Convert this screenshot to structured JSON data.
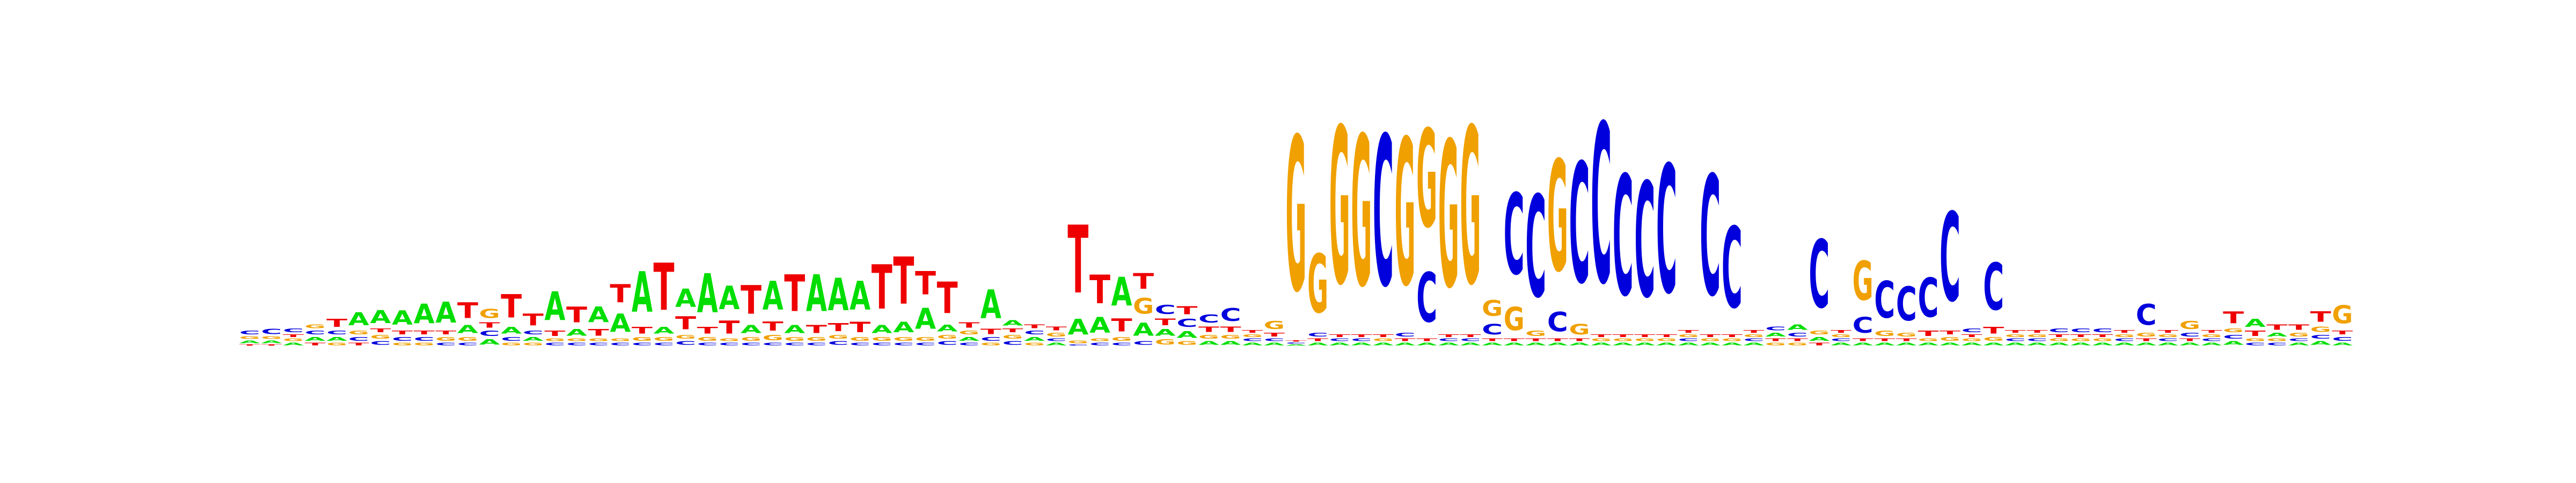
{
  "figure": {
    "kind": "sequence-logo",
    "alphabet": [
      "A",
      "C",
      "G",
      "T"
    ],
    "colors": {
      "A": "#00dd00",
      "C": "#0000dd",
      "G": "#f0a000",
      "T": "#ee0000"
    },
    "background": "#ffffff",
    "axes_visible": false
  },
  "chart_data": {
    "type": "sequence-logo",
    "units": "bits",
    "ylim": [
      0,
      2
    ],
    "positions": [
      {
        "A": 0.02,
        "C": 0.03,
        "G": 0.02,
        "T": 0.01
      },
      {
        "A": 0.02,
        "C": 0.04,
        "G": 0.02,
        "T": 0.01
      },
      {
        "A": 0.02,
        "C": 0.03,
        "G": 0.02,
        "T": 0.02
      },
      {
        "A": 0.03,
        "C": 0.03,
        "G": 0.03,
        "T": 0.02
      },
      {
        "A": 0.03,
        "C": 0.03,
        "G": 0.02,
        "T": 0.06
      },
      {
        "A": 0.1,
        "C": 0.03,
        "G": 0.03,
        "T": 0.02
      },
      {
        "A": 0.1,
        "C": 0.03,
        "G": 0.03,
        "T": 0.03
      },
      {
        "A": 0.11,
        "C": 0.03,
        "G": 0.02,
        "T": 0.03
      },
      {
        "A": 0.15,
        "C": 0.03,
        "G": 0.02,
        "T": 0.03
      },
      {
        "A": 0.16,
        "C": 0.02,
        "G": 0.03,
        "T": 0.03
      },
      {
        "A": 0.06,
        "C": 0.02,
        "G": 0.03,
        "T": 0.12
      },
      {
        "A": 0.04,
        "C": 0.04,
        "G": 0.07,
        "T": 0.04
      },
      {
        "A": 0.05,
        "C": 0.03,
        "G": 0.02,
        "T": 0.18
      },
      {
        "A": 0.03,
        "C": 0.03,
        "G": 0.02,
        "T": 0.09
      },
      {
        "A": 0.22,
        "C": 0.02,
        "G": 0.02,
        "T": 0.04
      },
      {
        "A": 0.05,
        "C": 0.02,
        "G": 0.02,
        "T": 0.12
      },
      {
        "A": 0.12,
        "C": 0.02,
        "G": 0.02,
        "T": 0.05
      },
      {
        "A": 0.14,
        "C": 0.02,
        "G": 0.02,
        "T": 0.14
      },
      {
        "A": 0.31,
        "C": 0.02,
        "G": 0.03,
        "T": 0.05
      },
      {
        "A": 0.05,
        "C": 0.02,
        "G": 0.03,
        "T": 0.36
      },
      {
        "A": 0.14,
        "C": 0.03,
        "G": 0.03,
        "T": 0.1
      },
      {
        "A": 0.3,
        "C": 0.02,
        "G": 0.03,
        "T": 0.05
      },
      {
        "A": 0.18,
        "C": 0.02,
        "G": 0.02,
        "T": 0.1
      },
      {
        "A": 0.06,
        "C": 0.02,
        "G": 0.03,
        "T": 0.22
      },
      {
        "A": 0.22,
        "C": 0.02,
        "G": 0.04,
        "T": 0.07
      },
      {
        "A": 0.06,
        "C": 0.02,
        "G": 0.03,
        "T": 0.28
      },
      {
        "A": 0.28,
        "C": 0.02,
        "G": 0.03,
        "T": 0.06
      },
      {
        "A": 0.25,
        "C": 0.03,
        "G": 0.03,
        "T": 0.06
      },
      {
        "A": 0.22,
        "C": 0.02,
        "G": 0.03,
        "T": 0.08
      },
      {
        "A": 0.06,
        "C": 0.02,
        "G": 0.03,
        "T": 0.34
      },
      {
        "A": 0.08,
        "C": 0.02,
        "G": 0.03,
        "T": 0.36
      },
      {
        "A": 0.16,
        "C": 0.02,
        "G": 0.03,
        "T": 0.18
      },
      {
        "A": 0.05,
        "C": 0.03,
        "G": 0.03,
        "T": 0.24
      },
      {
        "A": 0.03,
        "C": 0.02,
        "G": 0.03,
        "T": 0.04
      },
      {
        "A": 0.22,
        "C": 0.03,
        "G": 0.02,
        "T": 0.04
      },
      {
        "A": 0.04,
        "C": 0.03,
        "G": 0.03,
        "T": 0.03
      },
      {
        "A": 0.03,
        "C": 0.03,
        "G": 0.02,
        "T": 0.03
      },
      {
        "A": 0.02,
        "C": 0.02,
        "G": 0.03,
        "T": 0.03
      },
      {
        "A": 0.12,
        "C": 0.01,
        "G": 0.02,
        "T": 0.52
      },
      {
        "A": 0.12,
        "C": 0.02,
        "G": 0.02,
        "T": 0.22
      },
      {
        "A": 0.22,
        "C": 0.02,
        "G": 0.03,
        "T": 0.1
      },
      {
        "A": 0.1,
        "C": 0.03,
        "G": 0.12,
        "T": 0.12
      },
      {
        "A": 0.05,
        "C": 0.07,
        "G": 0.04,
        "T": 0.05
      },
      {
        "A": 0.05,
        "C": 0.06,
        "G": 0.03,
        "T": 0.06
      },
      {
        "A": 0.03,
        "C": 0.06,
        "G": 0.03,
        "T": 0.04
      },
      {
        "A": 0.03,
        "C": 0.1,
        "G": 0.03,
        "T": 0.04
      },
      {
        "A": 0.02,
        "C": 0.02,
        "G": 0.02,
        "T": 0.02
      },
      {
        "A": 0.02,
        "C": 0.02,
        "G": 0.06,
        "T": 0.03
      },
      {
        "A": 0.01,
        "C": 0.01,
        "G": 1.18,
        "T": 0.01
      },
      {
        "A": 0.02,
        "C": 0.03,
        "G": 0.45,
        "T": 0.02
      },
      {
        "A": 0.02,
        "C": 0.02,
        "G": 1.2,
        "T": 0.02
      },
      {
        "A": 0.02,
        "C": 0.02,
        "G": 1.15,
        "T": 0.02
      },
      {
        "A": 0.02,
        "C": 1.15,
        "G": 0.02,
        "T": 0.02
      },
      {
        "A": 0.02,
        "C": 0.03,
        "G": 1.12,
        "T": 0.02
      },
      {
        "A": 0.02,
        "C": 0.38,
        "G": 0.75,
        "T": 0.02
      },
      {
        "A": 0.02,
        "C": 0.02,
        "G": 1.12,
        "T": 0.02
      },
      {
        "A": 0.02,
        "C": 0.02,
        "G": 1.2,
        "T": 0.02
      },
      {
        "A": 0.02,
        "C": 0.08,
        "G": 0.12,
        "T": 0.02
      },
      {
        "A": 0.02,
        "C": 0.62,
        "G": 0.18,
        "T": 0.02
      },
      {
        "A": 0.02,
        "C": 0.78,
        "G": 0.04,
        "T": 0.02
      },
      {
        "A": 0.02,
        "C": 0.15,
        "G": 0.85,
        "T": 0.02
      },
      {
        "A": 0.02,
        "C": 0.92,
        "G": 0.08,
        "T": 0.02
      },
      {
        "A": 0.02,
        "C": 1.22,
        "G": 0.02,
        "T": 0.02
      },
      {
        "A": 0.02,
        "C": 0.92,
        "G": 0.02,
        "T": 0.02
      },
      {
        "A": 0.02,
        "C": 0.88,
        "G": 0.02,
        "T": 0.02
      },
      {
        "A": 0.02,
        "C": 0.98,
        "G": 0.02,
        "T": 0.02
      },
      {
        "A": 0.02,
        "C": 0.02,
        "G": 0.02,
        "T": 0.02
      },
      {
        "A": 0.02,
        "C": 0.92,
        "G": 0.02,
        "T": 0.02
      },
      {
        "A": 0.02,
        "C": 0.62,
        "G": 0.02,
        "T": 0.02
      },
      {
        "A": 0.02,
        "C": 0.02,
        "G": 0.02,
        "T": 0.02
      },
      {
        "A": 0.03,
        "C": 0.03,
        "G": 0.02,
        "T": 0.02
      },
      {
        "A": 0.04,
        "C": 0.03,
        "G": 0.02,
        "T": 0.02
      },
      {
        "A": 0.03,
        "C": 0.52,
        "G": 0.03,
        "T": 0.02
      },
      {
        "A": 0.02,
        "C": 0.02,
        "G": 0.02,
        "T": 0.02
      },
      {
        "A": 0.02,
        "C": 0.12,
        "G": 0.3,
        "T": 0.02
      },
      {
        "A": 0.02,
        "C": 0.28,
        "G": 0.04,
        "T": 0.02
      },
      {
        "A": 0.02,
        "C": 0.26,
        "G": 0.03,
        "T": 0.02
      },
      {
        "A": 0.02,
        "C": 0.3,
        "G": 0.02,
        "T": 0.04
      },
      {
        "A": 0.02,
        "C": 0.68,
        "G": 0.03,
        "T": 0.03
      },
      {
        "A": 0.02,
        "C": 0.03,
        "G": 0.02,
        "T": 0.02
      },
      {
        "A": 0.02,
        "C": 0.36,
        "G": 0.03,
        "T": 0.05
      },
      {
        "A": 0.02,
        "C": 0.02,
        "G": 0.02,
        "T": 0.02
      },
      {
        "A": 0.02,
        "C": 0.02,
        "G": 0.02,
        "T": 0.02
      },
      {
        "A": 0.02,
        "C": 0.03,
        "G": 0.02,
        "T": 0.02
      },
      {
        "A": 0.02,
        "C": 0.03,
        "G": 0.02,
        "T": 0.02
      },
      {
        "A": 0.02,
        "C": 0.03,
        "G": 0.02,
        "T": 0.02
      },
      {
        "A": 0.02,
        "C": 0.02,
        "G": 0.02,
        "T": 0.02
      },
      {
        "A": 0.02,
        "C": 0.16,
        "G": 0.03,
        "T": 0.02
      },
      {
        "A": 0.02,
        "C": 0.02,
        "G": 0.02,
        "T": 0.02
      },
      {
        "A": 0.02,
        "C": 0.03,
        "G": 0.06,
        "T": 0.02
      },
      {
        "A": 0.02,
        "C": 0.02,
        "G": 0.02,
        "T": 0.02
      },
      {
        "A": 0.03,
        "C": 0.03,
        "G": 0.03,
        "T": 0.09
      },
      {
        "A": 0.06,
        "C": 0.02,
        "G": 0.02,
        "T": 0.04
      },
      {
        "A": 0.03,
        "C": 0.02,
        "G": 0.02,
        "T": 0.04
      },
      {
        "A": 0.02,
        "C": 0.02,
        "G": 0.03,
        "T": 0.04
      },
      {
        "A": 0.03,
        "C": 0.03,
        "G": 0.04,
        "T": 0.08
      },
      {
        "A": 0.02,
        "C": 0.03,
        "G": 0.14,
        "T": 0.03
      }
    ]
  }
}
